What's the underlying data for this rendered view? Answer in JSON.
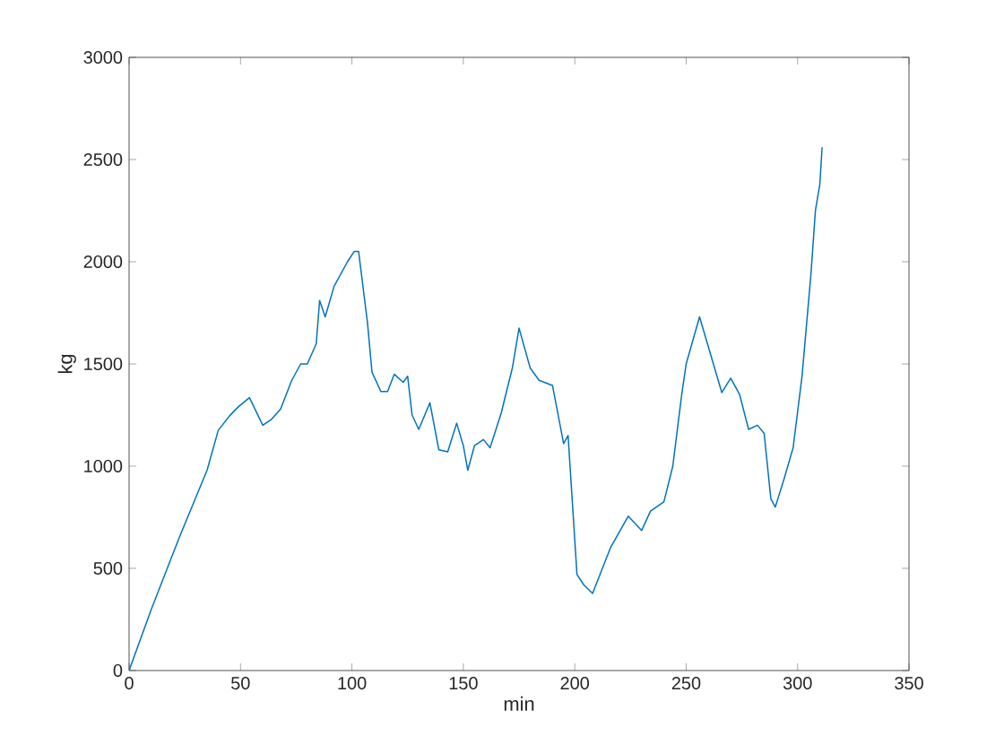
{
  "chart_data": {
    "type": "line",
    "xlabel": "min",
    "ylabel": "kg",
    "color": "#0072bd",
    "xlim": [
      0,
      350
    ],
    "ylim": [
      0,
      3000
    ],
    "xticks": [
      0,
      50,
      100,
      150,
      200,
      250,
      300,
      350
    ],
    "yticks": [
      0,
      500,
      1000,
      1500,
      2000,
      2500,
      3000
    ],
    "x": [
      0,
      10,
      22.5,
      35,
      40,
      45,
      49,
      54,
      60,
      64,
      68,
      73,
      77,
      80,
      84,
      85.5,
      88,
      92,
      98,
      101,
      103,
      107,
      109,
      113,
      116,
      119,
      123,
      125,
      127,
      130,
      135,
      139,
      143,
      147,
      150,
      152,
      155,
      159,
      162,
      167,
      172,
      175,
      180,
      184,
      190,
      195,
      197,
      201,
      204,
      208,
      216,
      224,
      230,
      234,
      240,
      244,
      248,
      250,
      256,
      261,
      266,
      270,
      274,
      278,
      282,
      285,
      288,
      290,
      294,
      298,
      302,
      306,
      308,
      310,
      311
    ],
    "values": [
      0,
      300,
      650,
      980,
      1175,
      1245,
      1290,
      1335,
      1200,
      1230,
      1280,
      1420,
      1500,
      1500,
      1600,
      1810,
      1730,
      1880,
      2000,
      2050,
      2050,
      1700,
      1460,
      1365,
      1365,
      1450,
      1410,
      1440,
      1250,
      1180,
      1310,
      1080,
      1070,
      1210,
      1100,
      980,
      1100,
      1130,
      1090,
      1260,
      1480,
      1675,
      1480,
      1420,
      1395,
      1110,
      1150,
      470,
      420,
      377,
      600,
      755,
      685,
      780,
      825,
      1000,
      1350,
      1500,
      1730,
      1545,
      1360,
      1430,
      1350,
      1180,
      1200,
      1160,
      840,
      800,
      940,
      1090,
      1440,
      1940,
      2250,
      2380,
      2560
    ]
  }
}
